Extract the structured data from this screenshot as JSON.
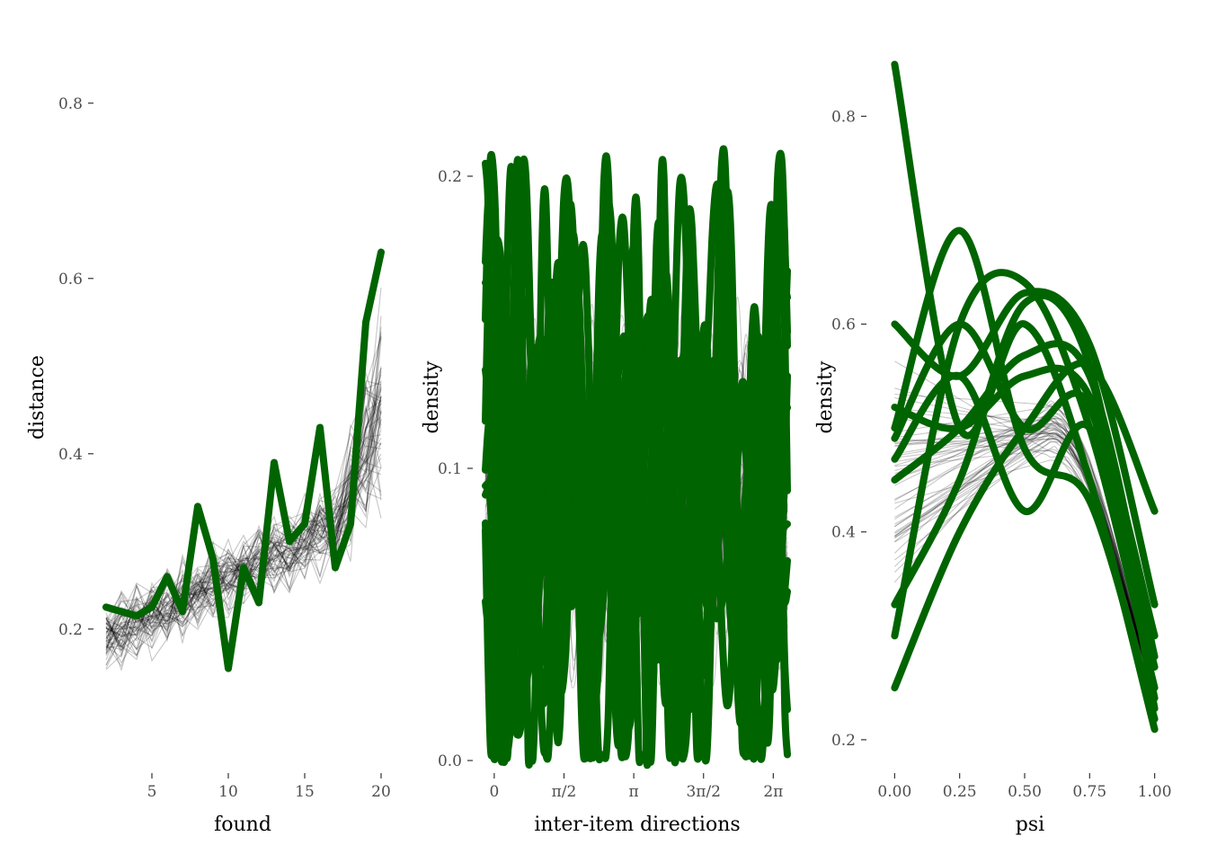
{
  "colors": {
    "highlight": "#006400",
    "background_line": "#000000",
    "tick_text": "#4d4d4d"
  },
  "chart_data": [
    {
      "type": "line",
      "xlabel": "found",
      "ylabel": "distance",
      "xlim": [
        2,
        20
      ],
      "ylim": [
        0.05,
        0.85
      ],
      "x_ticks": [
        5,
        10,
        15,
        20
      ],
      "y_ticks": [
        0.2,
        0.4,
        0.6,
        0.8
      ],
      "x_tick_labels": [
        "5",
        "10",
        "15",
        "20"
      ],
      "y_tick_labels": [
        "0.2",
        "0.4",
        "0.6",
        "0.8"
      ],
      "grid": false,
      "background_series_count": 60,
      "background_series_description": "faint grey simulated traces",
      "series": [
        {
          "role": "observed",
          "color": "#006400",
          "x": [
            2,
            3,
            4,
            5,
            6,
            7,
            8,
            9,
            10,
            11,
            12,
            13,
            14,
            15,
            16,
            17,
            18,
            19,
            20
          ],
          "values": [
            0.225,
            0.22,
            0.215,
            0.225,
            0.26,
            0.22,
            0.34,
            0.28,
            0.155,
            0.27,
            0.23,
            0.39,
            0.3,
            0.32,
            0.43,
            0.27,
            0.32,
            0.55,
            0.63
          ]
        }
      ]
    },
    {
      "type": "line",
      "xlabel": "inter-item directions",
      "ylabel": "density",
      "xlim": [
        -0.2,
        6.6
      ],
      "ylim": [
        0,
        0.24
      ],
      "x_ticks": [
        0,
        1.5708,
        3.1416,
        4.7124,
        6.2832
      ],
      "x_tick_labels": [
        "0",
        "π/2",
        "π",
        "3π/2",
        "2π"
      ],
      "y_ticks": [
        0.0,
        0.1,
        0.2
      ],
      "y_tick_labels": [
        "0.0",
        "0.1",
        "0.2"
      ],
      "grid": false,
      "background_series_count": 60,
      "background_series_description": "faint grey simulated density curves",
      "observed_series_count": 12,
      "observed_color": "#006400"
    },
    {
      "type": "line",
      "xlabel": "psi",
      "ylabel": "density",
      "xlim": [
        -0.06,
        1.06
      ],
      "ylim": [
        0.18,
        0.86
      ],
      "x_ticks": [
        0,
        0.25,
        0.5,
        0.75,
        1.0
      ],
      "x_tick_labels": [
        "0.00",
        "0.25",
        "0.50",
        "0.75",
        "1.00"
      ],
      "y_ticks": [
        0.2,
        0.4,
        0.6,
        0.8
      ],
      "y_tick_labels": [
        "0.2",
        "0.4",
        "0.6",
        "0.8"
      ],
      "grid": false,
      "background_series_count": 50,
      "background_series_description": "faint grey simulated density curves",
      "series": [
        {
          "role": "observed",
          "x": [
            0,
            0.25,
            0.5,
            0.75,
            1.0
          ],
          "values": [
            0.85,
            0.5,
            0.6,
            0.45,
            0.21
          ]
        },
        {
          "role": "observed",
          "x": [
            0,
            0.25,
            0.5,
            0.75,
            1.0
          ],
          "values": [
            0.6,
            0.55,
            0.63,
            0.58,
            0.33
          ]
        },
        {
          "role": "observed",
          "x": [
            0,
            0.25,
            0.5,
            0.75,
            1.0
          ],
          "values": [
            0.3,
            0.6,
            0.64,
            0.5,
            0.25
          ]
        },
        {
          "role": "observed",
          "x": [
            0,
            0.25,
            0.5,
            0.75,
            1.0
          ],
          "values": [
            0.25,
            0.4,
            0.5,
            0.56,
            0.42
          ]
        },
        {
          "role": "observed",
          "x": [
            0,
            0.25,
            0.5,
            0.75,
            1.0
          ],
          "values": [
            0.5,
            0.69,
            0.48,
            0.43,
            0.22
          ]
        },
        {
          "role": "observed",
          "x": [
            0,
            0.25,
            0.5,
            0.75,
            1.0
          ],
          "values": [
            0.52,
            0.5,
            0.55,
            0.53,
            0.3
          ]
        },
        {
          "role": "observed",
          "x": [
            0,
            0.25,
            0.5,
            0.75,
            1.0
          ],
          "values": [
            0.47,
            0.55,
            0.42,
            0.5,
            0.27
          ]
        },
        {
          "role": "observed",
          "x": [
            0,
            0.25,
            0.5,
            0.75,
            1.0
          ],
          "values": [
            0.33,
            0.45,
            0.62,
            0.56,
            0.23
          ]
        },
        {
          "role": "observed",
          "x": [
            0,
            0.25,
            0.5,
            0.75,
            1.0
          ],
          "values": [
            0.49,
            0.6,
            0.5,
            0.52,
            0.24
          ]
        },
        {
          "role": "observed",
          "x": [
            0,
            0.25,
            0.5,
            0.75,
            1.0
          ],
          "values": [
            0.45,
            0.5,
            0.57,
            0.55,
            0.28
          ]
        }
      ]
    }
  ]
}
